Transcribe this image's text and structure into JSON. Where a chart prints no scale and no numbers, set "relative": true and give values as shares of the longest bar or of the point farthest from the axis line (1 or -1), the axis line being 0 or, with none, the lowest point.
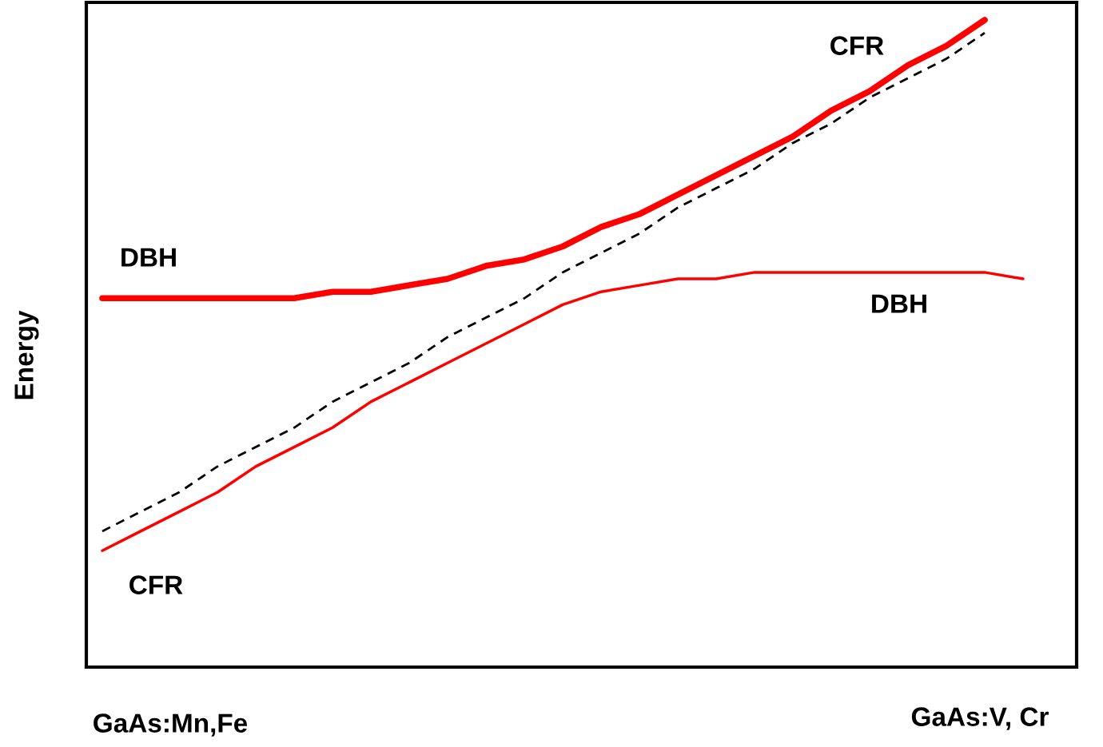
{
  "chart_data": {
    "type": "line",
    "relative": true,
    "ylabel": "Energy",
    "categories": [
      null,
      null,
      null,
      null,
      null,
      null,
      null,
      null,
      null,
      null,
      null,
      null,
      null,
      null,
      null,
      null,
      null,
      null,
      null,
      null,
      null,
      null,
      null,
      null,
      null
    ],
    "series": [
      {
        "color": "#ff0000",
        "values": [
          0.57,
          0.57,
          0.57,
          0.57,
          0.57,
          0.57,
          0.58,
          0.58,
          0.59,
          0.6,
          0.62,
          0.63,
          0.65,
          0.68,
          0.7,
          0.73,
          0.76,
          0.79,
          0.82,
          0.86,
          0.89,
          0.93,
          0.96,
          1.0,
          null
        ]
      },
      {
        "color": "#ff0000",
        "values": [
          0.18,
          0.21,
          0.24,
          0.27,
          0.31,
          0.34,
          0.37,
          0.41,
          0.44,
          0.47,
          0.5,
          0.53,
          0.56,
          0.58,
          0.59,
          0.6,
          0.6,
          0.61,
          0.61,
          0.61,
          0.61,
          0.61,
          0.61,
          0.61,
          0.6
        ]
      },
      {
        "color": "#000000",
        "line_style": "dashed",
        "values": [
          0.21,
          0.24,
          0.27,
          0.31,
          0.34,
          0.37,
          0.41,
          0.44,
          0.47,
          0.51,
          0.54,
          0.57,
          0.61,
          0.64,
          0.67,
          0.71,
          0.74,
          0.77,
          0.81,
          0.84,
          0.88,
          0.91,
          0.94,
          0.98,
          null
        ]
      }
    ],
    "annotations": [
      "DBH",
      "CFR",
      "DBH",
      "CFR",
      "GaAs:Mn,Fe",
      "GaAs:V, Cr"
    ],
    "legend": false
  }
}
